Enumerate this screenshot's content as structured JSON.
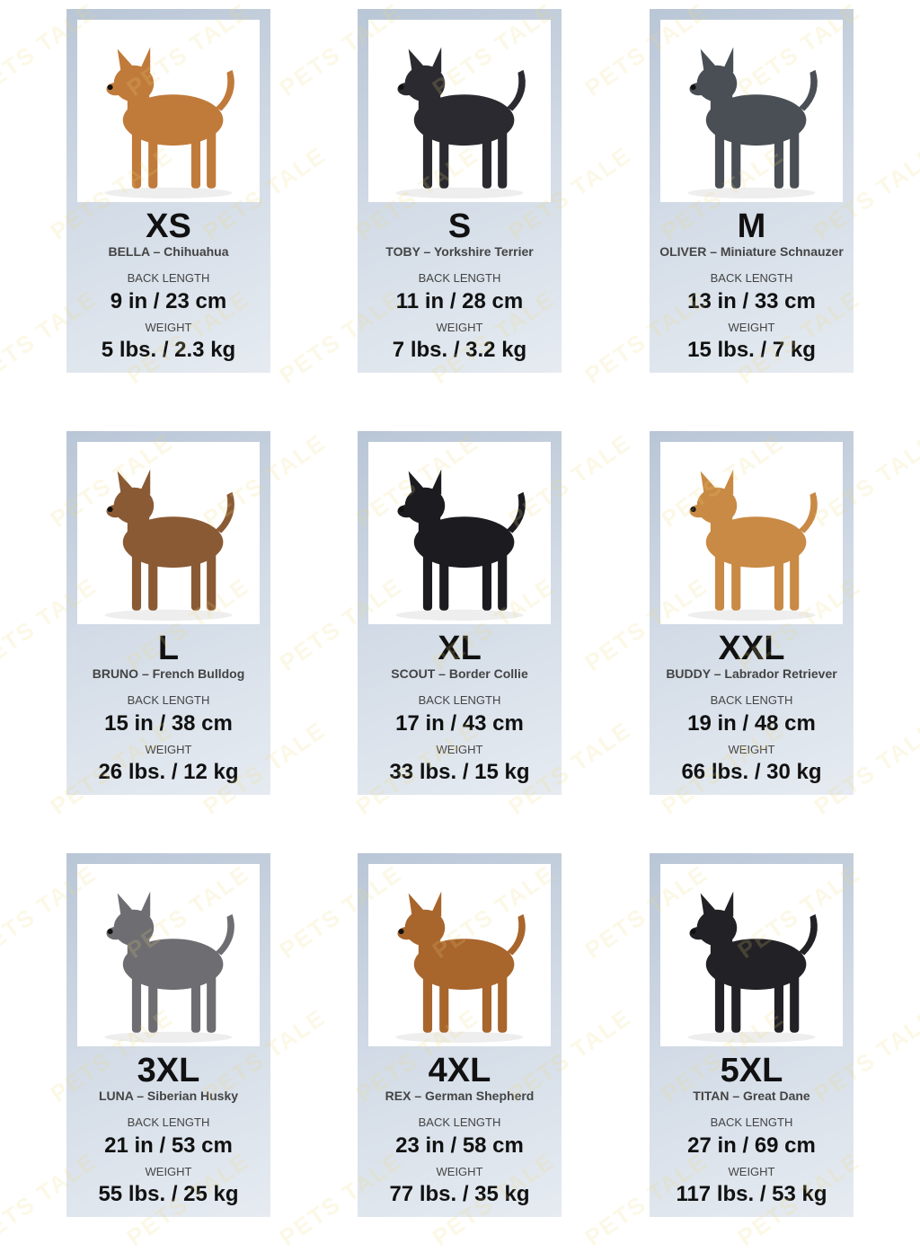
{
  "watermark": "PETS TALE",
  "labels": {
    "back_length": "BACK LENGTH",
    "weight": "WEIGHT"
  },
  "sizes": [
    {
      "size": "XS",
      "dog": "BELLA – Chihuahua",
      "back_length": "9 in / 23 cm",
      "weight": "5 lbs. / 2.3 kg",
      "icon": "chihuahua-photo",
      "coat": "#c07a3a"
    },
    {
      "size": "S",
      "dog": "TOBY – Yorkshire Terrier",
      "back_length": "11 in / 28 cm",
      "weight": "7 lbs. / 3.2 kg",
      "icon": "yorkshire-terrier-photo",
      "coat": "#2a2a30"
    },
    {
      "size": "M",
      "dog": "OLIVER – Miniature Schnauzer",
      "back_length": "13 in / 33 cm",
      "weight": "15 lbs. / 7 kg",
      "icon": "schnauzer-photo",
      "coat": "#4a4f55"
    },
    {
      "size": "L",
      "dog": "BRUNO – French Bulldog",
      "back_length": "15 in / 38 cm",
      "weight": "26 lbs. / 12 kg",
      "icon": "french-bulldog-photo",
      "coat": "#8a5a35"
    },
    {
      "size": "XL",
      "dog": "SCOUT – Border Collie",
      "back_length": "17 in / 43 cm",
      "weight": "33 lbs. / 15 kg",
      "icon": "border-collie-photo",
      "coat": "#1c1c20"
    },
    {
      "size": "XXL",
      "dog": "BUDDY – Labrador Retriever",
      "back_length": "19 in / 48 cm",
      "weight": "66 lbs. / 30 kg",
      "icon": "labrador-photo",
      "coat": "#c98a45"
    },
    {
      "size": "3XL",
      "dog": "LUNA – Siberian Husky",
      "back_length": "21 in / 53 cm",
      "weight": "55 lbs. / 25 kg",
      "icon": "husky-photo",
      "coat": "#6d6d72"
    },
    {
      "size": "4XL",
      "dog": "REX – German Shepherd",
      "back_length": "23 in / 58 cm",
      "weight": "77 lbs. / 35 kg",
      "icon": "german-shepherd-photo",
      "coat": "#a8652c"
    },
    {
      "size": "5XL",
      "dog": "TITAN – Great Dane",
      "back_length": "27 in / 69 cm",
      "weight": "117 lbs. / 53 kg",
      "icon": "great-dane-photo",
      "coat": "#222226"
    }
  ]
}
